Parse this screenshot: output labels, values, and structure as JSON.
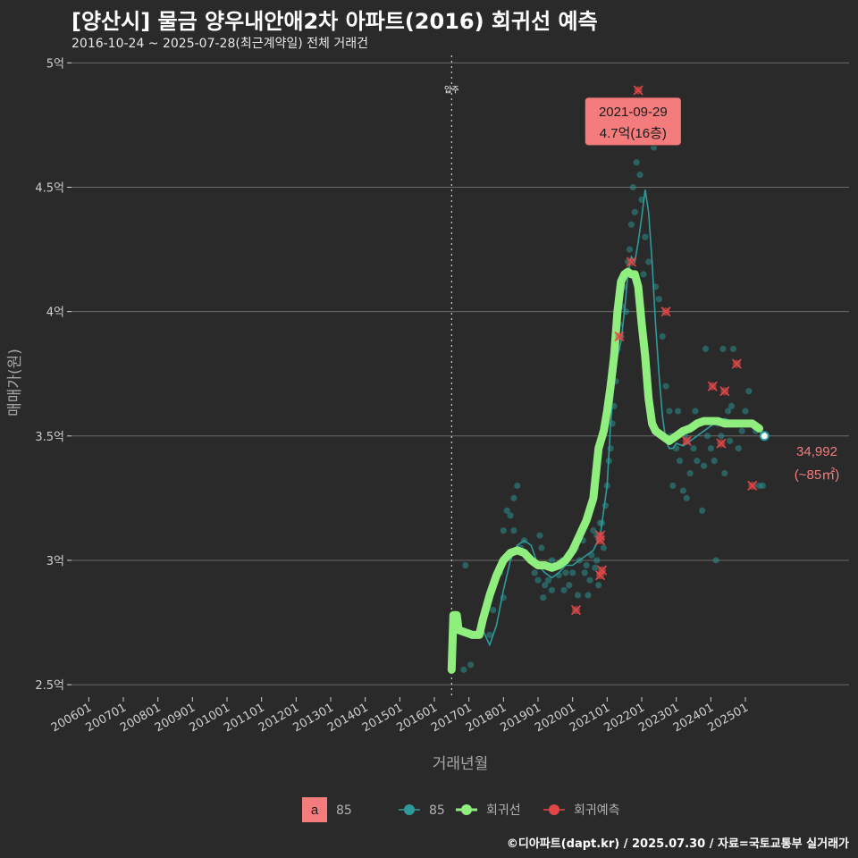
{
  "header": {
    "title": "[양산시] 물금 양우내안애2차 아파트(2016) 회귀선 예측",
    "subtitle": "2016-10-24 ~ 2025-07-28(최근계약일) 전체 거래건"
  },
  "footer": {
    "credit": "©디아파트(dapt.kr) / 2025.07.30 / 자료=국토교통부 실거래가"
  },
  "colors": {
    "background": "#2a2a2b",
    "grid": "#6b6b6b",
    "scatter": "#2a8e8e",
    "trend": "#2f9a9a",
    "regression": "#90ee7e",
    "prediction": "#e04848",
    "label_fill": "#f47c7c"
  },
  "chart_data": {
    "type": "scatter",
    "title": "[양산시] 물금 양우내안애2차 아파트(2016) 회귀선 예측",
    "subtitle": "2016-10-24 ~ 2025-07-28(최근계약일) 전체 거래건",
    "xlabel": "거래년월",
    "ylabel": "매매가(원)",
    "xlim": [
      2005.5,
      2028.0
    ],
    "ylim": [
      2.45,
      5.03
    ],
    "x_ticks": [
      2006,
      2007,
      2008,
      2009,
      2010,
      2011,
      2012,
      2013,
      2014,
      2015,
      2016,
      2017,
      2018,
      2019,
      2020,
      2021,
      2022,
      2023,
      2024,
      2025
    ],
    "x_tick_labels": [
      "200601",
      "200701",
      "200801",
      "200901",
      "201001",
      "201101",
      "201201",
      "201301",
      "201401",
      "201501",
      "201601",
      "201701",
      "201801",
      "201901",
      "202001",
      "202101",
      "202201",
      "202301",
      "202401",
      "202501"
    ],
    "y_ticks": [
      2.5,
      3.0,
      3.5,
      4.0,
      4.5,
      5.0
    ],
    "y_tick_labels": [
      "2.5억",
      "3억",
      "3.5억",
      "4억",
      "4.5억",
      "5억"
    ],
    "move_in": {
      "x": 2016.5,
      "label": "입주"
    },
    "annotation": {
      "x": 2021.75,
      "y": 4.7,
      "line1": "2021-09-29",
      "line2": "4.7억(16층)"
    },
    "last_point": {
      "x": 2025.55,
      "y": 3.5,
      "value_label": "34,992",
      "area_label": "(~85㎡)"
    },
    "series": [
      {
        "name": "85",
        "kind": "scatter",
        "points": [
          [
            2016.85,
            2.56
          ],
          [
            2017.05,
            2.58
          ],
          [
            2016.9,
            2.98
          ],
          [
            2017.3,
            2.72
          ],
          [
            2017.6,
            2.7
          ],
          [
            2017.7,
            2.8
          ],
          [
            2017.9,
            2.95
          ],
          [
            2018.0,
            2.85
          ],
          [
            2018.0,
            3.12
          ],
          [
            2018.1,
            3.2
          ],
          [
            2018.2,
            3.18
          ],
          [
            2018.3,
            3.12
          ],
          [
            2018.3,
            3.25
          ],
          [
            2018.4,
            3.3
          ],
          [
            2018.5,
            3.05
          ],
          [
            2018.6,
            3.08
          ],
          [
            2018.7,
            3.02
          ],
          [
            2018.8,
            3.0
          ],
          [
            2018.9,
            2.95
          ],
          [
            2019.0,
            2.92
          ],
          [
            2019.05,
            3.1
          ],
          [
            2019.1,
            3.05
          ],
          [
            2019.15,
            2.85
          ],
          [
            2019.2,
            2.9
          ],
          [
            2019.3,
            2.92
          ],
          [
            2019.4,
            3.0
          ],
          [
            2019.4,
            2.88
          ],
          [
            2019.5,
            2.98
          ],
          [
            2019.6,
            2.94
          ],
          [
            2019.7,
            3.0
          ],
          [
            2019.75,
            2.88
          ],
          [
            2019.8,
            2.95
          ],
          [
            2019.9,
            2.9
          ],
          [
            2020.0,
            2.95
          ],
          [
            2020.05,
            3.04
          ],
          [
            2020.1,
            3.05
          ],
          [
            2020.15,
            2.86
          ],
          [
            2020.2,
            3.0
          ],
          [
            2020.3,
            3.08
          ],
          [
            2020.35,
            2.95
          ],
          [
            2020.4,
            2.98
          ],
          [
            2020.45,
            2.86
          ],
          [
            2020.5,
            2.92
          ],
          [
            2020.55,
            3.02
          ],
          [
            2020.6,
            3.12
          ],
          [
            2020.65,
            2.97
          ],
          [
            2020.7,
            3.0
          ],
          [
            2020.7,
            3.1
          ],
          [
            2020.75,
            2.9
          ],
          [
            2020.8,
            3.15
          ],
          [
            2020.85,
            3.15
          ],
          [
            2020.9,
            3.05
          ],
          [
            2020.95,
            3.22
          ],
          [
            2021.0,
            3.3
          ],
          [
            2021.05,
            3.4
          ],
          [
            2021.1,
            3.45
          ],
          [
            2021.15,
            3.55
          ],
          [
            2021.2,
            3.62
          ],
          [
            2021.25,
            3.72
          ],
          [
            2021.3,
            3.85
          ],
          [
            2021.35,
            3.95
          ],
          [
            2021.4,
            3.9
          ],
          [
            2021.45,
            4.02
          ],
          [
            2021.5,
            4.1
          ],
          [
            2021.55,
            4.0
          ],
          [
            2021.6,
            4.2
          ],
          [
            2021.65,
            4.25
          ],
          [
            2021.7,
            4.35
          ],
          [
            2021.75,
            4.5
          ],
          [
            2021.8,
            4.4
          ],
          [
            2021.85,
            4.6
          ],
          [
            2021.9,
            4.7
          ],
          [
            2021.95,
            4.55
          ],
          [
            2022.0,
            4.45
          ],
          [
            2022.05,
            4.15
          ],
          [
            2022.1,
            4.3
          ],
          [
            2022.2,
            4.2
          ],
          [
            2022.3,
            4.68
          ],
          [
            2022.35,
            4.66
          ],
          [
            2022.4,
            4.1
          ],
          [
            2022.5,
            4.05
          ],
          [
            2022.6,
            3.9
          ],
          [
            2022.7,
            3.7
          ],
          [
            2022.8,
            3.6
          ],
          [
            2022.85,
            3.5
          ],
          [
            2022.9,
            3.3
          ],
          [
            2023.0,
            3.45
          ],
          [
            2023.05,
            3.6
          ],
          [
            2023.1,
            3.4
          ],
          [
            2023.2,
            3.28
          ],
          [
            2023.25,
            3.5
          ],
          [
            2023.3,
            3.25
          ],
          [
            2023.4,
            3.35
          ],
          [
            2023.5,
            3.45
          ],
          [
            2023.55,
            3.6
          ],
          [
            2023.6,
            3.4
          ],
          [
            2023.7,
            3.55
          ],
          [
            2023.75,
            3.2
          ],
          [
            2023.8,
            3.38
          ],
          [
            2023.85,
            3.85
          ],
          [
            2023.9,
            3.5
          ],
          [
            2024.0,
            3.45
          ],
          [
            2024.1,
            3.4
          ],
          [
            2024.15,
            3.0
          ],
          [
            2024.2,
            3.55
          ],
          [
            2024.3,
            3.5
          ],
          [
            2024.35,
            3.85
          ],
          [
            2024.4,
            3.35
          ],
          [
            2024.5,
            3.6
          ],
          [
            2024.55,
            3.48
          ],
          [
            2024.6,
            3.62
          ],
          [
            2024.65,
            3.85
          ],
          [
            2024.7,
            3.55
          ],
          [
            2024.8,
            3.45
          ],
          [
            2024.9,
            3.52
          ],
          [
            2025.0,
            3.6
          ],
          [
            2025.1,
            3.68
          ],
          [
            2025.2,
            3.55
          ],
          [
            2025.3,
            3.52
          ],
          [
            2025.4,
            3.3
          ],
          [
            2025.5,
            3.3
          ]
        ]
      },
      {
        "name": "85",
        "kind": "trend",
        "points": [
          [
            2017.4,
            2.72
          ],
          [
            2017.6,
            2.66
          ],
          [
            2017.8,
            2.74
          ],
          [
            2018.0,
            2.88
          ],
          [
            2018.2,
            3.0
          ],
          [
            2018.4,
            3.06
          ],
          [
            2018.6,
            3.08
          ],
          [
            2018.8,
            3.06
          ],
          [
            2019.0,
            2.98
          ],
          [
            2019.2,
            2.95
          ],
          [
            2019.4,
            2.93
          ],
          [
            2019.6,
            2.95
          ],
          [
            2019.8,
            2.98
          ],
          [
            2020.0,
            2.98
          ],
          [
            2020.2,
            3.0
          ],
          [
            2020.4,
            3.02
          ],
          [
            2020.6,
            3.04
          ],
          [
            2020.8,
            3.1
          ],
          [
            2021.0,
            3.3
          ],
          [
            2021.1,
            3.55
          ],
          [
            2021.2,
            3.72
          ],
          [
            2021.3,
            3.82
          ],
          [
            2021.4,
            3.88
          ],
          [
            2021.5,
            4.0
          ],
          [
            2021.6,
            4.15
          ],
          [
            2021.7,
            4.22
          ],
          [
            2021.8,
            4.2
          ],
          [
            2021.9,
            4.28
          ],
          [
            2022.0,
            4.38
          ],
          [
            2022.1,
            4.49
          ],
          [
            2022.2,
            4.4
          ],
          [
            2022.3,
            4.2
          ],
          [
            2022.4,
            3.95
          ],
          [
            2022.5,
            3.75
          ],
          [
            2022.6,
            3.58
          ],
          [
            2022.7,
            3.48
          ],
          [
            2022.8,
            3.45
          ],
          [
            2022.9,
            3.45
          ],
          [
            2023.0,
            3.47
          ],
          [
            2023.2,
            3.46
          ],
          [
            2023.4,
            3.48
          ],
          [
            2023.6,
            3.5
          ],
          [
            2023.8,
            3.52
          ],
          [
            2024.0,
            3.54
          ],
          [
            2024.2,
            3.56
          ],
          [
            2024.4,
            3.57
          ],
          [
            2024.6,
            3.56
          ],
          [
            2024.8,
            3.55
          ],
          [
            2025.0,
            3.55
          ],
          [
            2025.2,
            3.54
          ],
          [
            2025.4,
            3.52
          ],
          [
            2025.55,
            3.5
          ]
        ]
      },
      {
        "name": "회귀선",
        "kind": "regression",
        "points": [
          [
            2016.5,
            2.56
          ],
          [
            2016.55,
            2.78
          ],
          [
            2016.65,
            2.78
          ],
          [
            2016.7,
            2.72
          ],
          [
            2016.9,
            2.71
          ],
          [
            2017.1,
            2.7
          ],
          [
            2017.3,
            2.7
          ],
          [
            2017.4,
            2.76
          ],
          [
            2017.6,
            2.86
          ],
          [
            2017.8,
            2.94
          ],
          [
            2018.0,
            3.0
          ],
          [
            2018.2,
            3.03
          ],
          [
            2018.4,
            3.04
          ],
          [
            2018.6,
            3.03
          ],
          [
            2018.8,
            3.0
          ],
          [
            2019.0,
            2.98
          ],
          [
            2019.2,
            2.98
          ],
          [
            2019.4,
            2.97
          ],
          [
            2019.6,
            2.98
          ],
          [
            2019.8,
            3.0
          ],
          [
            2020.0,
            3.04
          ],
          [
            2020.2,
            3.1
          ],
          [
            2020.4,
            3.16
          ],
          [
            2020.6,
            3.25
          ],
          [
            2020.75,
            3.45
          ],
          [
            2020.9,
            3.52
          ],
          [
            2021.0,
            3.6
          ],
          [
            2021.1,
            3.7
          ],
          [
            2021.2,
            3.82
          ],
          [
            2021.3,
            4.0
          ],
          [
            2021.4,
            4.12
          ],
          [
            2021.5,
            4.15
          ],
          [
            2021.6,
            4.16
          ],
          [
            2021.7,
            4.15
          ],
          [
            2021.8,
            4.15
          ],
          [
            2021.9,
            4.1
          ],
          [
            2022.0,
            3.95
          ],
          [
            2022.1,
            3.82
          ],
          [
            2022.2,
            3.65
          ],
          [
            2022.3,
            3.55
          ],
          [
            2022.4,
            3.52
          ],
          [
            2022.6,
            3.5
          ],
          [
            2022.8,
            3.48
          ],
          [
            2023.0,
            3.5
          ],
          [
            2023.2,
            3.52
          ],
          [
            2023.4,
            3.53
          ],
          [
            2023.6,
            3.55
          ],
          [
            2023.8,
            3.56
          ],
          [
            2024.0,
            3.56
          ],
          [
            2024.2,
            3.56
          ],
          [
            2024.4,
            3.55
          ],
          [
            2024.6,
            3.55
          ],
          [
            2024.8,
            3.55
          ],
          [
            2025.0,
            3.55
          ],
          [
            2025.2,
            3.55
          ],
          [
            2025.4,
            3.53
          ]
        ]
      },
      {
        "name": "회귀예측",
        "kind": "prediction",
        "points": [
          [
            2021.9,
            4.89
          ],
          [
            2021.7,
            4.2
          ],
          [
            2021.35,
            3.9
          ],
          [
            2022.7,
            4.0
          ],
          [
            2020.1,
            2.8
          ],
          [
            2020.8,
            3.1
          ],
          [
            2020.8,
            3.08
          ],
          [
            2020.85,
            2.96
          ],
          [
            2020.8,
            2.94
          ],
          [
            2023.3,
            3.48
          ],
          [
            2024.05,
            3.7
          ],
          [
            2024.4,
            3.68
          ],
          [
            2024.75,
            3.79
          ],
          [
            2024.3,
            3.47
          ],
          [
            2025.2,
            3.3
          ]
        ]
      }
    ],
    "legend": {
      "label_box": {
        "letter": "a",
        "text": "85"
      },
      "items": [
        {
          "name": "85",
          "kind": "scatter"
        },
        {
          "name": "회귀선",
          "kind": "regression"
        },
        {
          "name": "회귀예측",
          "kind": "prediction"
        }
      ],
      "position": "bottom"
    }
  }
}
